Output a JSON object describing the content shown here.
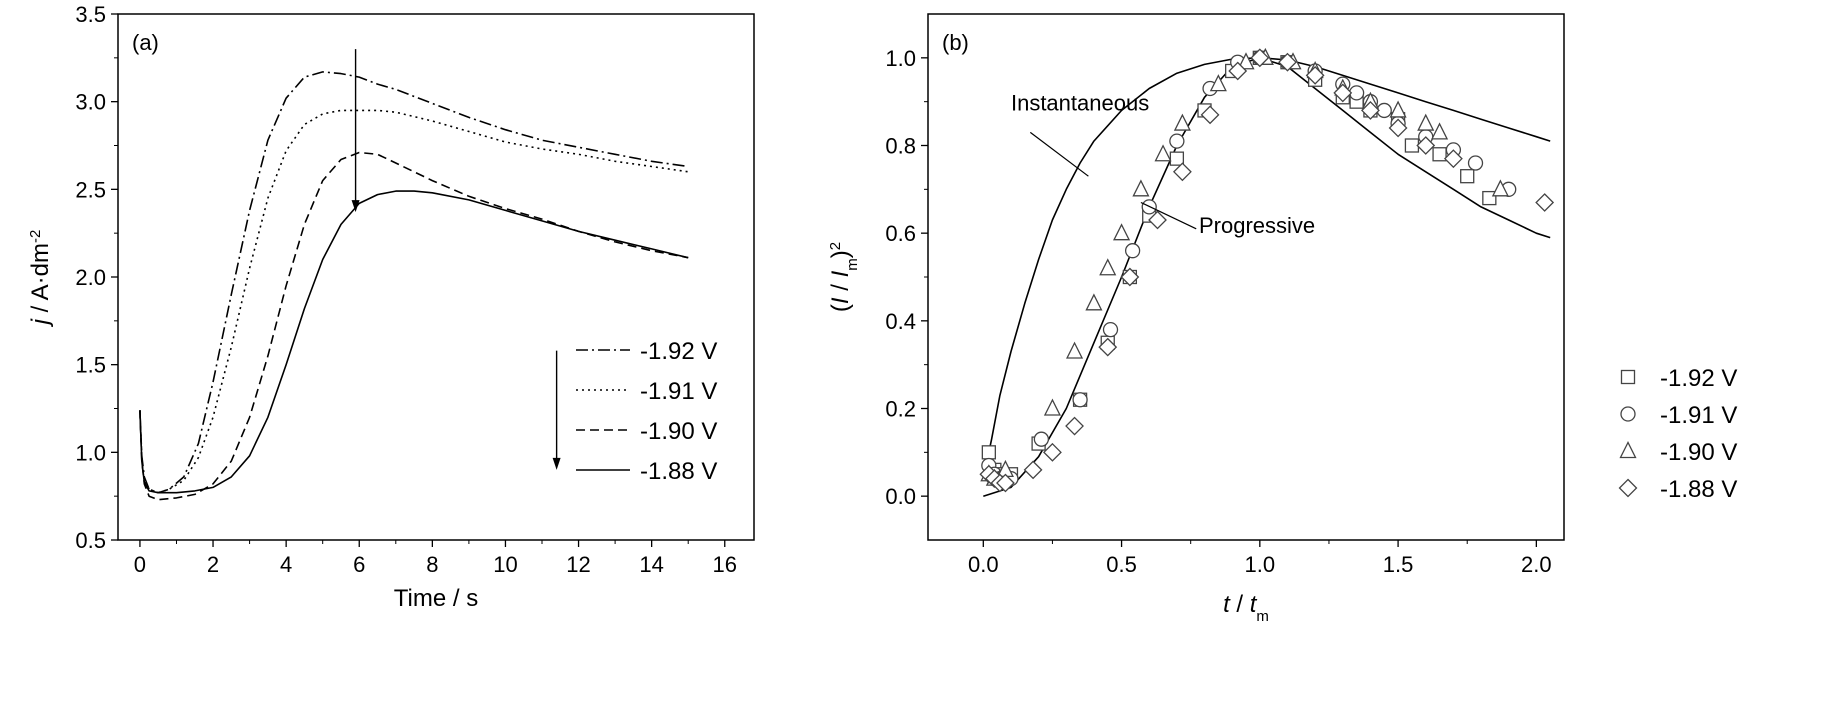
{
  "chart_data": [
    {
      "type": "line",
      "panel_label": "(a)",
      "xlabel": "Time / s",
      "ylabel_main": "j / A·dm",
      "ylabel_sup": "-2",
      "xlim": [
        -0.6,
        16.8
      ],
      "ylim": [
        0.5,
        3.5
      ],
      "xticks": [
        0,
        2,
        4,
        6,
        8,
        10,
        12,
        14,
        16
      ],
      "yticks": [
        0.5,
        1.0,
        1.5,
        2.0,
        2.5,
        3.0,
        3.5
      ],
      "legend_position": "lower-right",
      "arrows": [
        {
          "x": 5.9,
          "y_from": 3.3,
          "y_to": 2.37
        },
        {
          "x": 11.4,
          "y_from": 1.58,
          "y_to": 0.9
        }
      ],
      "series": [
        {
          "name": "-1.92 V",
          "style": "dashdot",
          "x": [
            0,
            0.05,
            0.12,
            0.25,
            0.5,
            0.8,
            1.2,
            1.6,
            2.0,
            2.5,
            3.0,
            3.5,
            4.0,
            4.5,
            5.0,
            5.5,
            6.0,
            6.5,
            7.0,
            8.0,
            9.0,
            10.0,
            11.0,
            12.0,
            13.0,
            14.0,
            15.0
          ],
          "y": [
            1.24,
            0.98,
            0.86,
            0.79,
            0.77,
            0.79,
            0.86,
            1.05,
            1.4,
            1.9,
            2.38,
            2.78,
            3.02,
            3.14,
            3.17,
            3.16,
            3.14,
            3.1,
            3.07,
            2.99,
            2.91,
            2.84,
            2.78,
            2.74,
            2.7,
            2.66,
            2.63
          ]
        },
        {
          "name": "-1.91 V",
          "style": "dotted",
          "x": [
            0,
            0.05,
            0.12,
            0.25,
            0.5,
            0.8,
            1.2,
            1.6,
            2.0,
            2.5,
            3.0,
            3.5,
            4.0,
            4.5,
            5.0,
            5.5,
            6.0,
            6.5,
            7.0,
            8.0,
            9.0,
            10.0,
            11.0,
            12.0,
            13.0,
            14.0,
            15.0
          ],
          "y": [
            1.24,
            0.97,
            0.85,
            0.79,
            0.77,
            0.79,
            0.84,
            0.97,
            1.2,
            1.6,
            2.05,
            2.45,
            2.72,
            2.87,
            2.93,
            2.95,
            2.95,
            2.95,
            2.94,
            2.89,
            2.83,
            2.77,
            2.73,
            2.7,
            2.66,
            2.63,
            2.6
          ]
        },
        {
          "name": "-1.90 V",
          "style": "dashed",
          "x": [
            0,
            0.05,
            0.12,
            0.25,
            0.5,
            1.0,
            1.5,
            2.0,
            2.5,
            3.0,
            3.5,
            4.0,
            4.5,
            5.0,
            5.5,
            6.0,
            6.5,
            7.0,
            8.0,
            9.0,
            10.0,
            11.0,
            12.0,
            13.0,
            14.0,
            15.0
          ],
          "y": [
            1.24,
            0.95,
            0.82,
            0.75,
            0.73,
            0.74,
            0.76,
            0.82,
            0.95,
            1.2,
            1.55,
            1.95,
            2.3,
            2.55,
            2.67,
            2.71,
            2.7,
            2.65,
            2.55,
            2.46,
            2.39,
            2.33,
            2.26,
            2.2,
            2.15,
            2.11
          ]
        },
        {
          "name": "-1.88 V",
          "style": "solid",
          "x": [
            0,
            0.05,
            0.12,
            0.25,
            0.5,
            1.0,
            1.5,
            2.0,
            2.5,
            3.0,
            3.5,
            4.0,
            4.5,
            5.0,
            5.5,
            6.0,
            6.5,
            7.0,
            7.5,
            8.0,
            9.0,
            10.0,
            11.0,
            12.0,
            13.0,
            14.0,
            15.0
          ],
          "y": [
            1.24,
            0.95,
            0.83,
            0.78,
            0.77,
            0.77,
            0.78,
            0.8,
            0.86,
            0.98,
            1.2,
            1.5,
            1.82,
            2.1,
            2.3,
            2.42,
            2.47,
            2.49,
            2.49,
            2.48,
            2.44,
            2.38,
            2.32,
            2.26,
            2.21,
            2.16,
            2.11
          ]
        }
      ]
    },
    {
      "type": "scatter",
      "panel_label": "(b)",
      "xlabel_main": "t / t",
      "xlabel_sub": "m",
      "ylabel_main": "(I / I",
      "ylabel_sub": "m",
      "ylabel_close": ")",
      "ylabel_sup": "2",
      "xlim": [
        -0.2,
        2.1
      ],
      "ylim": [
        -0.1,
        1.1
      ],
      "xticks": [
        0.0,
        0.5,
        1.0,
        1.5,
        2.0
      ],
      "xtick_labels": [
        "0.0",
        "0.5",
        "1.0",
        "1.5",
        "2.0"
      ],
      "yticks": [
        0.0,
        0.2,
        0.4,
        0.6,
        0.8,
        1.0
      ],
      "ytick_labels": [
        "0.0",
        "0.2",
        "0.4",
        "0.6",
        "0.8",
        "1.0"
      ],
      "legend_position": "lower-right",
      "model_curves": [
        {
          "name": "Instantaneous",
          "x": [
            0.0,
            0.03,
            0.06,
            0.1,
            0.15,
            0.2,
            0.25,
            0.3,
            0.35,
            0.4,
            0.5,
            0.6,
            0.7,
            0.8,
            0.9,
            1.0,
            1.1,
            1.2,
            1.3,
            1.4,
            1.5,
            1.6,
            1.7,
            1.8,
            1.9,
            2.0,
            2.05
          ],
          "y": [
            0.04,
            0.13,
            0.23,
            0.33,
            0.44,
            0.54,
            0.63,
            0.7,
            0.76,
            0.81,
            0.88,
            0.93,
            0.965,
            0.985,
            0.997,
            1.0,
            0.995,
            0.98,
            0.96,
            0.94,
            0.92,
            0.9,
            0.88,
            0.86,
            0.84,
            0.82,
            0.81
          ]
        },
        {
          "name": "Progressive",
          "x": [
            0.0,
            0.1,
            0.2,
            0.3,
            0.4,
            0.5,
            0.6,
            0.7,
            0.8,
            0.9,
            1.0,
            1.1,
            1.2,
            1.3,
            1.4,
            1.5,
            1.6,
            1.7,
            1.8,
            1.9,
            2.0,
            2.05
          ],
          "y": [
            0.0,
            0.02,
            0.09,
            0.2,
            0.35,
            0.5,
            0.66,
            0.8,
            0.91,
            0.98,
            1.0,
            0.98,
            0.93,
            0.88,
            0.83,
            0.78,
            0.74,
            0.7,
            0.66,
            0.63,
            0.6,
            0.59
          ]
        }
      ],
      "series": [
        {
          "name": "-1.92 V",
          "marker": "square",
          "x": [
            0.02,
            0.04,
            0.06,
            0.1,
            0.2,
            0.35,
            0.45,
            0.53,
            0.6,
            0.7,
            0.8,
            0.9,
            1.0,
            1.1,
            1.2,
            1.3,
            1.35,
            1.4,
            1.5,
            1.55,
            1.65,
            1.75,
            1.83
          ],
          "y": [
            0.1,
            0.06,
            0.05,
            0.05,
            0.12,
            0.22,
            0.35,
            0.5,
            0.64,
            0.77,
            0.88,
            0.97,
            1.0,
            0.99,
            0.95,
            0.91,
            0.9,
            0.88,
            0.86,
            0.8,
            0.78,
            0.73,
            0.68
          ]
        },
        {
          "name": "-1.91 V",
          "marker": "circle",
          "x": [
            0.02,
            0.04,
            0.06,
            0.1,
            0.21,
            0.35,
            0.46,
            0.54,
            0.6,
            0.7,
            0.82,
            0.92,
            1.0,
            1.1,
            1.2,
            1.3,
            1.35,
            1.4,
            1.45,
            1.5,
            1.6,
            1.7,
            1.78,
            1.9
          ],
          "y": [
            0.07,
            0.05,
            0.04,
            0.04,
            0.13,
            0.22,
            0.38,
            0.56,
            0.66,
            0.81,
            0.93,
            0.99,
            1.0,
            0.99,
            0.97,
            0.94,
            0.92,
            0.9,
            0.88,
            0.85,
            0.82,
            0.79,
            0.76,
            0.7
          ]
        },
        {
          "name": "-1.90 V",
          "marker": "triangle",
          "x": [
            0.02,
            0.04,
            0.06,
            0.08,
            0.25,
            0.33,
            0.4,
            0.45,
            0.5,
            0.57,
            0.65,
            0.72,
            0.85,
            0.95,
            1.02,
            1.12,
            1.2,
            1.3,
            1.4,
            1.5,
            1.6,
            1.65,
            1.87
          ],
          "y": [
            0.05,
            0.04,
            0.04,
            0.06,
            0.2,
            0.33,
            0.44,
            0.52,
            0.6,
            0.7,
            0.78,
            0.85,
            0.94,
            0.99,
            1.0,
            0.99,
            0.97,
            0.93,
            0.9,
            0.88,
            0.85,
            0.83,
            0.7
          ]
        },
        {
          "name": "-1.88 V",
          "marker": "diamond",
          "x": [
            0.02,
            0.04,
            0.06,
            0.08,
            0.18,
            0.25,
            0.33,
            0.45,
            0.53,
            0.63,
            0.72,
            0.82,
            0.92,
            1.0,
            1.1,
            1.2,
            1.3,
            1.4,
            1.5,
            1.6,
            1.7,
            2.03
          ],
          "y": [
            0.05,
            0.04,
            0.03,
            0.03,
            0.06,
            0.1,
            0.16,
            0.34,
            0.5,
            0.63,
            0.74,
            0.87,
            0.97,
            1.0,
            0.99,
            0.96,
            0.92,
            0.88,
            0.84,
            0.8,
            0.77,
            0.67
          ]
        }
      ]
    }
  ]
}
